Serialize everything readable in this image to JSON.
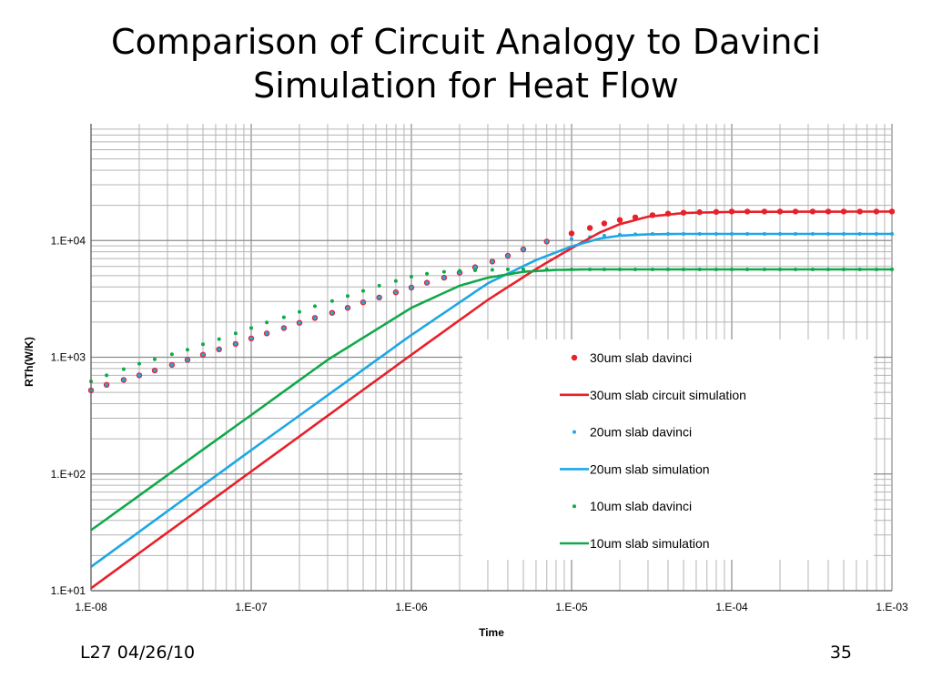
{
  "slide": {
    "title_line1": "Comparison of Circuit Analogy to Davinci",
    "title_line2": "Simulation for Heat Flow",
    "footer_left": "L27 04/26/10",
    "page_number": "35"
  },
  "colors": {
    "red": "#e8202a",
    "blue": "#1ea7e4",
    "green": "#12a84a",
    "grid": "#b4b4b4",
    "major_grid": "#8c8c8c"
  },
  "chart_data": {
    "type": "line",
    "title": "",
    "xlabel": "Time",
    "ylabel": "RTh(W/K)",
    "xscale": "log",
    "yscale": "log",
    "xlim": [
      1e-08,
      0.001
    ],
    "ylim": [
      10,
      100000
    ],
    "grid": true,
    "legend_position": "inside-bottom-right",
    "x_tick_labels": [
      "1.E-08",
      "1.E-07",
      "1.E-06",
      "1.E-05",
      "1.E-04",
      "1.E-03"
    ],
    "y_tick_labels": [
      "1.E+01",
      "1.E+02",
      "1.E+03",
      "1.E+04"
    ],
    "series": [
      {
        "name": "30um slab davinci",
        "kind": "dots",
        "color": "#e8202a",
        "x": [
          1e-08,
          1.25e-08,
          1.6e-08,
          2e-08,
          2.5e-08,
          3.2e-08,
          4e-08,
          5e-08,
          6.3e-08,
          8e-08,
          1e-07,
          1.25e-07,
          1.6e-07,
          2e-07,
          2.5e-07,
          3.2e-07,
          4e-07,
          5e-07,
          6.3e-07,
          8e-07,
          1e-06,
          1.25e-06,
          1.6e-06,
          2e-06,
          2.5e-06,
          3.2e-06,
          4e-06,
          5e-06,
          7e-06,
          1e-05,
          1.3e-05,
          1.6e-05,
          2e-05,
          2.5e-05,
          3.2e-05,
          4e-05,
          5e-05,
          6.3e-05,
          8e-05,
          0.0001,
          0.000125,
          0.00016,
          0.0002,
          0.00025,
          0.00032,
          0.0004,
          0.0005,
          0.00063,
          0.0008,
          0.001
        ],
        "y": [
          520,
          580,
          640,
          700,
          770,
          860,
          950,
          1050,
          1170,
          1300,
          1450,
          1600,
          1780,
          1970,
          2170,
          2400,
          2650,
          2950,
          3250,
          3600,
          3950,
          4350,
          4800,
          5300,
          5900,
          6600,
          7400,
          8400,
          9800,
          11500,
          12800,
          14000,
          15000,
          15800,
          16500,
          17000,
          17300,
          17500,
          17600,
          17700,
          17700,
          17700,
          17700,
          17700,
          17700,
          17700,
          17700,
          17700,
          17700,
          17700
        ]
      },
      {
        "name": "30um slab circuit simulation",
        "kind": "line",
        "color": "#e8202a",
        "x": [
          1e-08,
          1e-07,
          1e-06,
          3e-06,
          6e-06,
          1e-05,
          1.5e-05,
          2e-05,
          3e-05,
          5e-05,
          0.0001,
          0.001
        ],
        "y": [
          10.5,
          105,
          1050,
          3100,
          5700,
          8600,
          11700,
          13800,
          16000,
          17200,
          17600,
          17700
        ]
      },
      {
        "name": "20um slab davinci",
        "kind": "dots",
        "color": "#1ea7e4",
        "x": [
          1e-08,
          1.25e-08,
          1.6e-08,
          2e-08,
          2.5e-08,
          3.2e-08,
          4e-08,
          5e-08,
          6.3e-08,
          8e-08,
          1e-07,
          1.25e-07,
          1.6e-07,
          2e-07,
          2.5e-07,
          3.2e-07,
          4e-07,
          5e-07,
          6.3e-07,
          8e-07,
          1e-06,
          1.25e-06,
          1.6e-06,
          2e-06,
          2.5e-06,
          3.2e-06,
          4e-06,
          5e-06,
          7e-06,
          1e-05,
          1.3e-05,
          1.6e-05,
          2e-05,
          2.5e-05,
          3.2e-05,
          4e-05,
          5e-05,
          6.3e-05,
          8e-05,
          0.0001,
          0.000125,
          0.00016,
          0.0002,
          0.00025,
          0.00032,
          0.0004,
          0.0005,
          0.00063,
          0.0008,
          0.001
        ],
        "y": [
          520,
          580,
          640,
          700,
          770,
          860,
          950,
          1050,
          1170,
          1300,
          1450,
          1600,
          1780,
          1970,
          2170,
          2400,
          2650,
          2950,
          3250,
          3600,
          3950,
          4350,
          4800,
          5300,
          5900,
          6600,
          7400,
          8400,
          9800,
          10300,
          10700,
          11000,
          11200,
          11300,
          11400,
          11400,
          11400,
          11400,
          11400,
          11400,
          11400,
          11400,
          11400,
          11400,
          11400,
          11400,
          11400,
          11400,
          11400,
          11400
        ]
      },
      {
        "name": "20um slab simulation",
        "kind": "line",
        "color": "#1ea7e4",
        "x": [
          1e-08,
          1e-07,
          1e-06,
          3e-06,
          6e-06,
          1e-05,
          1.5e-05,
          2e-05,
          3e-05,
          5e-05,
          0.0001,
          0.001
        ],
        "y": [
          16,
          160,
          1550,
          4300,
          6800,
          8900,
          10400,
          11000,
          11300,
          11400,
          11400,
          11400
        ]
      },
      {
        "name": "10um slab davinci",
        "kind": "dots",
        "color": "#12a84a",
        "x": [
          1e-08,
          1.25e-08,
          1.6e-08,
          2e-08,
          2.5e-08,
          3.2e-08,
          4e-08,
          5e-08,
          6.3e-08,
          8e-08,
          1e-07,
          1.25e-07,
          1.6e-07,
          2e-07,
          2.5e-07,
          3.2e-07,
          4e-07,
          5e-07,
          6.3e-07,
          8e-07,
          1e-06,
          1.25e-06,
          1.6e-06,
          2e-06,
          2.5e-06,
          3.2e-06,
          4e-06,
          5e-06,
          7e-06,
          1e-05,
          1.3e-05,
          1.6e-05,
          2e-05,
          2.5e-05,
          3.2e-05,
          4e-05,
          5e-05,
          6.3e-05,
          8e-05,
          0.0001,
          0.000125,
          0.00016,
          0.0002,
          0.00025,
          0.00032,
          0.0004,
          0.0005,
          0.00063,
          0.0008,
          0.001
        ],
        "y": [
          620,
          700,
          790,
          880,
          960,
          1060,
          1160,
          1290,
          1430,
          1600,
          1780,
          1990,
          2200,
          2450,
          2740,
          3030,
          3350,
          3700,
          4100,
          4500,
          4900,
          5200,
          5400,
          5500,
          5550,
          5600,
          5650,
          5650,
          5650,
          5650,
          5650,
          5650,
          5650,
          5650,
          5650,
          5650,
          5650,
          5650,
          5650,
          5650,
          5650,
          5650,
          5650,
          5650,
          5650,
          5650,
          5650,
          5650,
          5650,
          5650
        ]
      },
      {
        "name": "10um slab simulation",
        "kind": "line",
        "color": "#12a84a",
        "x": [
          1e-08,
          1e-07,
          3e-07,
          1e-06,
          2e-06,
          3e-06,
          5e-06,
          8e-06,
          1.2e-05,
          2e-05,
          0.0001,
          0.001
        ],
        "y": [
          33,
          320,
          950,
          2650,
          4100,
          4800,
          5400,
          5600,
          5650,
          5650,
          5650,
          5650
        ]
      }
    ]
  }
}
